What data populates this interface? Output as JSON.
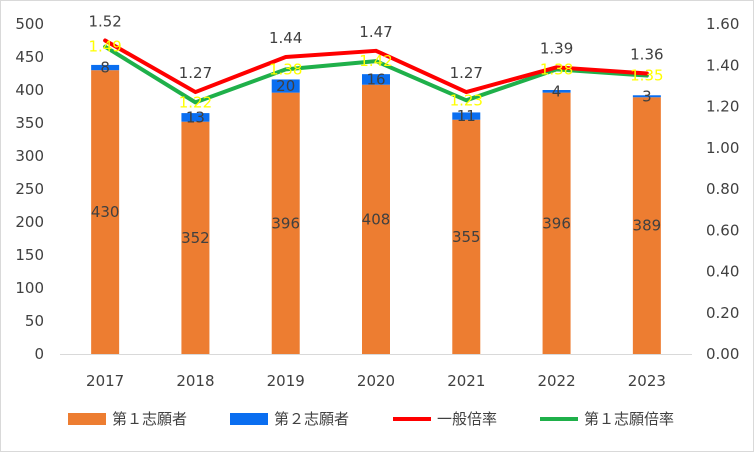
{
  "chart_data": {
    "type": "bar",
    "categories": [
      "2017",
      "2018",
      "2019",
      "2020",
      "2021",
      "2022",
      "2023"
    ],
    "stacked_series": [
      {
        "name": "第１志願者",
        "color": "#ED7D31",
        "values": [
          430,
          352,
          396,
          408,
          355,
          396,
          389
        ]
      },
      {
        "name": "第２志願者",
        "color": "#0A6EF0",
        "values": [
          8,
          13,
          20,
          16,
          11,
          4,
          3
        ]
      }
    ],
    "line_series": [
      {
        "name": "一般倍率",
        "color": "#FF0000",
        "label_color": "#404040",
        "label_position": "above",
        "values": [
          1.52,
          1.27,
          1.44,
          1.47,
          1.27,
          1.39,
          1.36
        ]
      },
      {
        "name": "第１志願倍率",
        "color": "#1FB04A",
        "label_color": "#FFFF00",
        "label_position": "center",
        "values": [
          1.49,
          1.22,
          1.38,
          1.42,
          1.23,
          1.38,
          1.35
        ]
      }
    ],
    "y_left": {
      "min": 0,
      "max": 500,
      "step": 50,
      "ticks": [
        "0",
        "50",
        "100",
        "150",
        "200",
        "250",
        "300",
        "350",
        "400",
        "450",
        "500"
      ]
    },
    "y_right": {
      "min": 0,
      "max": 1.6,
      "step": 0.2,
      "ticks": [
        "0.00",
        "0.20",
        "0.40",
        "0.60",
        "0.80",
        "1.00",
        "1.20",
        "1.40",
        "1.60"
      ]
    },
    "grid": false,
    "legend_position": "bottom",
    "title": "",
    "xlabel": "",
    "ylabel": ""
  }
}
